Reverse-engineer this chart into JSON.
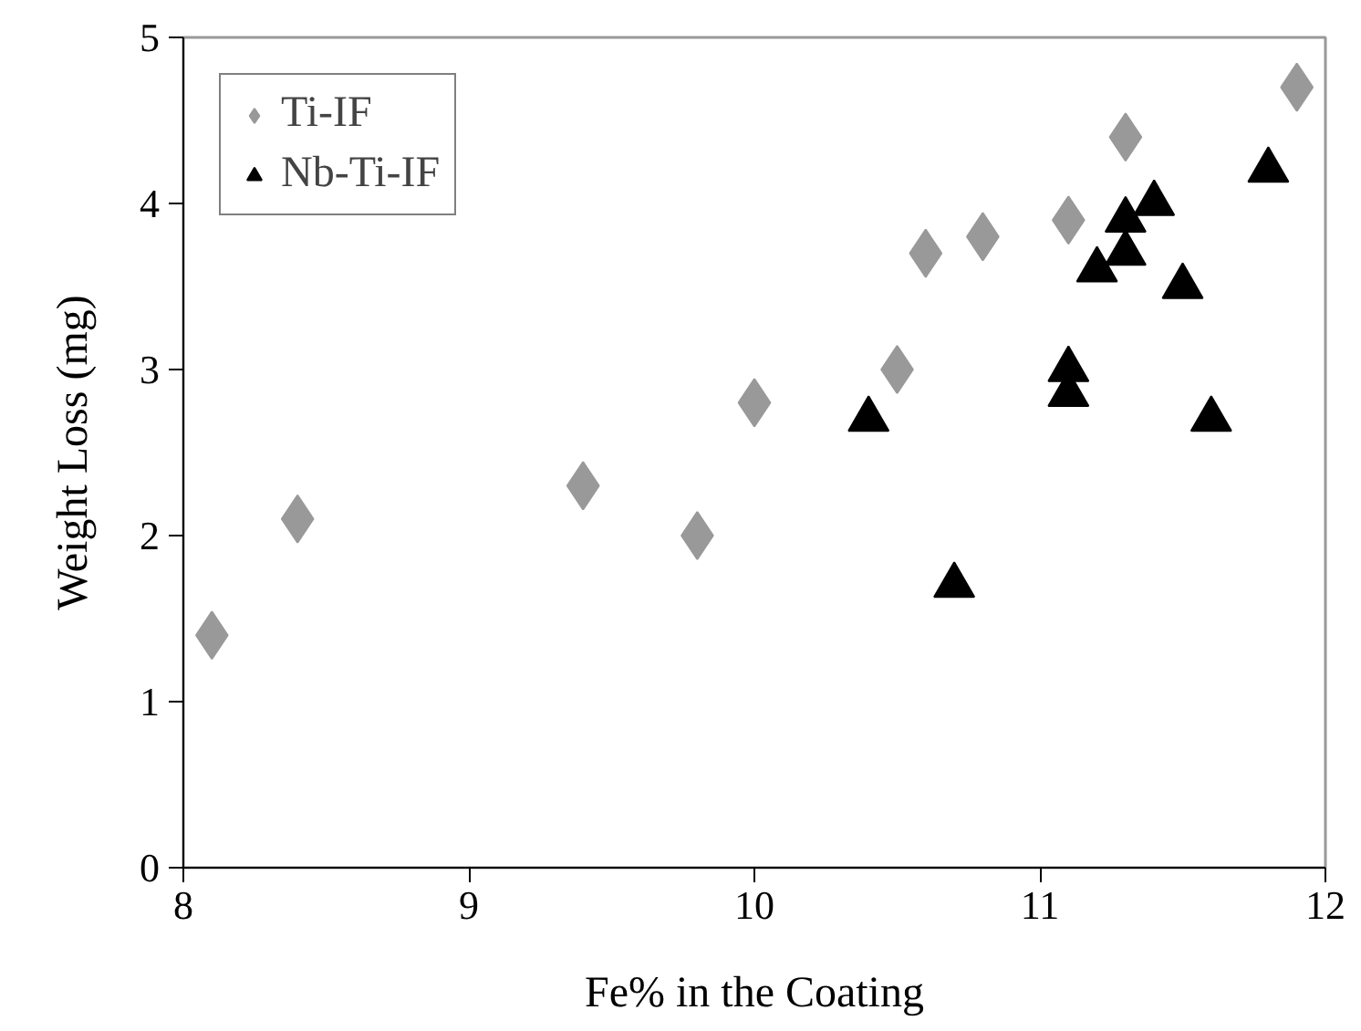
{
  "chart_data": {
    "type": "scatter",
    "xlabel": "Fe% in the Coating",
    "ylabel": "Weight Loss (mg)",
    "xlim": [
      8,
      12
    ],
    "xticks": [
      8,
      9,
      10,
      11,
      12
    ],
    "ylim": [
      0,
      5
    ],
    "yticks": [
      0,
      1,
      2,
      3,
      4,
      5
    ],
    "grid": false,
    "legend": "top left",
    "series": [
      {
        "name": "Ti-IF",
        "color": "#999999",
        "marker": "diamond",
        "x": [
          8.1,
          8.4,
          9.4,
          9.8,
          10.0,
          10.5,
          10.6,
          10.8,
          11.1,
          11.3,
          11.9
        ],
        "values": [
          1.4,
          2.1,
          2.3,
          2.0,
          2.8,
          3.0,
          3.7,
          3.8,
          3.9,
          4.4,
          4.7
        ]
      },
      {
        "name": "Nb-Ti-IF",
        "color": "#000000",
        "marker": "triangle",
        "x": [
          10.4,
          10.7,
          11.1,
          11.1,
          11.2,
          11.3,
          11.3,
          11.4,
          11.5,
          11.6,
          11.8
        ],
        "values": [
          2.7,
          1.7,
          2.85,
          3.0,
          3.6,
          3.7,
          3.9,
          4.0,
          3.5,
          2.7,
          4.2
        ]
      }
    ]
  }
}
